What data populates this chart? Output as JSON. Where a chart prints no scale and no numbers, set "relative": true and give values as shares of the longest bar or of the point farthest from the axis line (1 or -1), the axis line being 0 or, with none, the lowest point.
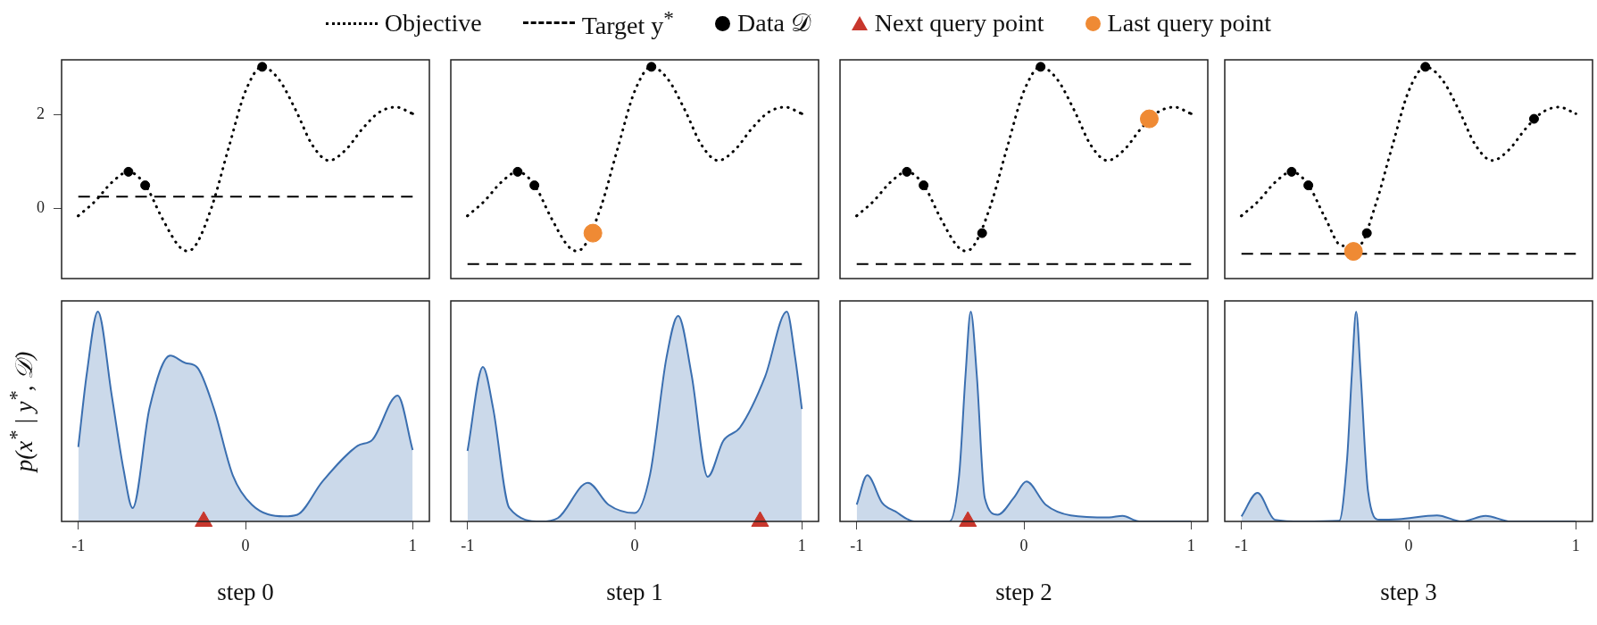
{
  "chart_data": [
    {
      "type": "line",
      "xlim": [
        -1.1,
        1.1
      ],
      "ylim": [
        -1.5,
        3.17
      ],
      "yticks": [
        0,
        2
      ],
      "tick_labels": "y",
      "legend": "top",
      "series": [
        {
          "name": "Objective",
          "line_style": "dotted",
          "color": "#000000",
          "x": [
            -1,
            -0.9,
            -0.8,
            -0.7,
            -0.6,
            -0.5,
            -0.4,
            -0.35,
            -0.3,
            -0.2,
            -0.1,
            0,
            0.1,
            0.2,
            0.3,
            0.4,
            0.5,
            0.6,
            0.7,
            0.8,
            0.9,
            1
          ],
          "values": [
            -0.16,
            0.15,
            0.55,
            0.78,
            0.5,
            -0.2,
            -0.8,
            -0.91,
            -0.8,
            0.05,
            1.3,
            2.5,
            3.02,
            2.75,
            2.1,
            1.35,
            1.02,
            1.25,
            1.7,
            2.05,
            2.16,
            2.02
          ]
        },
        {
          "name": "Target y$^{*}$",
          "line_style": "dashed",
          "color": "#000000",
          "x": [
            -1,
            1
          ],
          "values": [
            0.25,
            0.25
          ]
        },
        {
          "name": "Data 𝒟",
          "type": "scatter",
          "marker": "circle",
          "color": "#000000",
          "x": [
            -0.7,
            -0.6,
            0.1
          ],
          "values": [
            0.78,
            0.49,
            3.02
          ]
        }
      ]
    },
    {
      "type": "line",
      "xlim": [
        -1.1,
        1.1
      ],
      "ylim": [
        -1.5,
        3.17
      ],
      "tick_labels": false,
      "series": [
        {
          "type": "line",
          "line_style": "dotted",
          "color": "#000000",
          "x": [
            -1,
            -0.9,
            -0.8,
            -0.7,
            -0.6,
            -0.5,
            -0.4,
            -0.35,
            -0.3,
            -0.2,
            -0.1,
            0,
            0.1,
            0.2,
            0.3,
            0.4,
            0.5,
            0.6,
            0.7,
            0.8,
            0.9,
            1
          ],
          "values": [
            -0.16,
            0.15,
            0.55,
            0.78,
            0.5,
            -0.2,
            -0.8,
            -0.91,
            -0.8,
            0.05,
            1.3,
            2.5,
            3.02,
            2.75,
            2.1,
            1.35,
            1.02,
            1.25,
            1.7,
            2.05,
            2.16,
            2.02
          ]
        },
        {
          "type": "line",
          "line_style": "dashed",
          "color": "#000000",
          "x": [
            -1,
            1
          ],
          "values": [
            -1.19,
            -1.19
          ]
        },
        {
          "type": "scatter",
          "marker": "circle",
          "color": "#000000",
          "x": [
            -0.7,
            -0.6,
            0.1
          ],
          "values": [
            0.78,
            0.49,
            3.02
          ]
        },
        {
          "name": "Last query point",
          "type": "scatter",
          "marker": "circle",
          "color": "#ef8a34",
          "x": [
            -0.25
          ],
          "values": [
            -0.53
          ]
        }
      ]
    },
    {
      "type": "line",
      "xlim": [
        -1.1,
        1.1
      ],
      "ylim": [
        -1.5,
        3.17
      ],
      "tick_labels": false,
      "series": [
        {
          "type": "line",
          "line_style": "dotted",
          "color": "#000000",
          "x": [
            -1,
            -0.9,
            -0.8,
            -0.7,
            -0.6,
            -0.5,
            -0.4,
            -0.35,
            -0.3,
            -0.2,
            -0.1,
            0,
            0.1,
            0.2,
            0.3,
            0.4,
            0.5,
            0.6,
            0.7,
            0.8,
            0.9,
            1
          ],
          "values": [
            -0.16,
            0.15,
            0.55,
            0.78,
            0.5,
            -0.2,
            -0.8,
            -0.91,
            -0.8,
            0.05,
            1.3,
            2.5,
            3.02,
            2.75,
            2.1,
            1.35,
            1.02,
            1.25,
            1.7,
            2.05,
            2.16,
            2.02
          ]
        },
        {
          "type": "line",
          "line_style": "dashed",
          "color": "#000000",
          "x": [
            -1,
            1
          ],
          "values": [
            -1.19,
            -1.19
          ]
        },
        {
          "type": "scatter",
          "marker": "circle",
          "color": "#000000",
          "x": [
            -0.7,
            -0.6,
            -0.25,
            0.1
          ],
          "values": [
            0.78,
            0.49,
            -0.53,
            3.02
          ]
        },
        {
          "type": "scatter",
          "marker": "circle",
          "color": "#ef8a34",
          "x": [
            0.75
          ],
          "values": [
            1.91
          ]
        }
      ]
    },
    {
      "type": "line",
      "xlim": [
        -1.1,
        1.1
      ],
      "ylim": [
        -1.5,
        3.17
      ],
      "tick_labels": false,
      "series": [
        {
          "type": "line",
          "line_style": "dotted",
          "color": "#000000",
          "x": [
            -1,
            -0.9,
            -0.8,
            -0.7,
            -0.6,
            -0.5,
            -0.4,
            -0.35,
            -0.3,
            -0.2,
            -0.1,
            0,
            0.1,
            0.2,
            0.3,
            0.4,
            0.5,
            0.6,
            0.7,
            0.8,
            0.9,
            1
          ],
          "values": [
            -0.16,
            0.15,
            0.55,
            0.78,
            0.5,
            -0.2,
            -0.8,
            null,
            -0.8,
            0.05,
            1.3,
            2.5,
            3.02,
            2.75,
            2.1,
            1.35,
            1.02,
            1.25,
            1.7,
            2.05,
            2.16,
            2.02
          ]
        },
        {
          "type": "line",
          "line_style": "dashed",
          "color": "#000000",
          "x": [
            -1,
            1
          ],
          "values": [
            -0.97,
            -0.97
          ]
        },
        {
          "type": "scatter",
          "marker": "circle",
          "color": "#000000",
          "x": [
            -0.7,
            -0.6,
            -0.25,
            0.1,
            0.75
          ],
          "values": [
            0.78,
            0.49,
            -0.53,
            3.02,
            1.91
          ]
        },
        {
          "type": "scatter",
          "marker": "circle",
          "color": "#ef8a34",
          "x": [
            -0.33
          ],
          "values": [
            -0.92
          ]
        }
      ]
    },
    {
      "type": "area",
      "relative": true,
      "xlim": [
        -1.1,
        1.1
      ],
      "xticks": [
        -1,
        0,
        1
      ],
      "xlabel": "step 0",
      "ylabel": "p(x$^{*}$ | y$^{*}$, 𝒟)",
      "series": [
        {
          "type": "area",
          "color": "#3b6fb0",
          "x": [
            -1,
            -0.95,
            -0.883,
            -0.8,
            -0.73,
            -0.675,
            -0.574,
            -0.45,
            -0.36,
            -0.29,
            -0.19,
            -0.076,
            0.038,
            0.23,
            0.31,
            0.46,
            0.67,
            0.76,
            0.91,
            1
          ],
          "values": [
            0.355,
            0.7,
            1,
            0.6,
            0.25,
            0.064,
            0.54,
            0.79,
            0.755,
            0.735,
            0.54,
            0.22,
            0.08,
            0.024,
            0.032,
            0.19,
            0.36,
            0.39,
            0.6,
            0.34
          ]
        },
        {
          "name": "Next query point",
          "type": "scatter",
          "marker": "triangle",
          "color": "#c8372d",
          "x": [
            -0.25
          ],
          "values": [
            0
          ]
        }
      ]
    },
    {
      "type": "area",
      "relative": true,
      "xlim": [
        -1.1,
        1.1
      ],
      "xticks": [
        -1,
        0,
        1
      ],
      "xlabel": "step 1",
      "series": [
        {
          "type": "area",
          "color": "#3b6fb0",
          "x": [
            -1,
            -0.908,
            -0.847,
            -0.75,
            -0.56,
            -0.46,
            -0.28,
            -0.157,
            0,
            0.092,
            0.19,
            0.26,
            0.34,
            0.437,
            0.53,
            0.63,
            0.78,
            0.91,
            0.96,
            1
          ],
          "values": [
            0.336,
            0.736,
            0.54,
            0.064,
            0,
            0.016,
            0.184,
            0.08,
            0.04,
            0.224,
            0.78,
            0.98,
            0.7,
            0.213,
            0.384,
            0.448,
            0.69,
            1,
            0.78,
            0.536
          ]
        },
        {
          "type": "scatter",
          "marker": "triangle",
          "color": "#c8372d",
          "x": [
            0.75
          ],
          "values": [
            0
          ]
        }
      ]
    },
    {
      "type": "area",
      "relative": true,
      "xlim": [
        -1.1,
        1.1
      ],
      "xticks": [
        -1,
        0,
        1
      ],
      "xlabel": "step 2",
      "series": [
        {
          "type": "area",
          "color": "#3b6fb0",
          "x": [
            -1,
            -0.937,
            -0.847,
            -0.77,
            -0.655,
            -0.445,
            -0.387,
            -0.349,
            -0.318,
            -0.282,
            -0.234,
            -0.157,
            -0.061,
            0.015,
            0.13,
            0.28,
            0.51,
            0.59,
            0.69,
            1
          ],
          "values": [
            0.08,
            0.22,
            0.088,
            0.048,
            0,
            0,
            0.224,
            0.7,
            1,
            0.7,
            0.112,
            0.032,
            0.112,
            0.19,
            0.08,
            0.029,
            0.019,
            0.027,
            0,
            0
          ]
        },
        {
          "type": "scatter",
          "marker": "triangle",
          "color": "#c8372d",
          "x": [
            -0.335
          ],
          "values": [
            0
          ]
        }
      ]
    },
    {
      "type": "area",
      "relative": true,
      "xlim": [
        -1.1,
        1.1
      ],
      "xticks": [
        -1,
        0,
        1
      ],
      "xlabel": "step 3",
      "series": [
        {
          "type": "area",
          "color": "#3b6fb0",
          "x": [
            -1,
            -0.904,
            -0.8,
            -0.636,
            -0.416,
            -0.368,
            -0.34,
            -0.314,
            -0.287,
            -0.243,
            -0.176,
            -0.06,
            0.17,
            0.32,
            0.46,
            0.61,
            1
          ],
          "values": [
            0.024,
            0.136,
            0.008,
            0,
            0.003,
            0.3,
            0.7,
            1,
            0.7,
            0.144,
            0.008,
            0.011,
            0.029,
            0,
            0.027,
            0,
            0
          ]
        }
      ]
    }
  ]
}
